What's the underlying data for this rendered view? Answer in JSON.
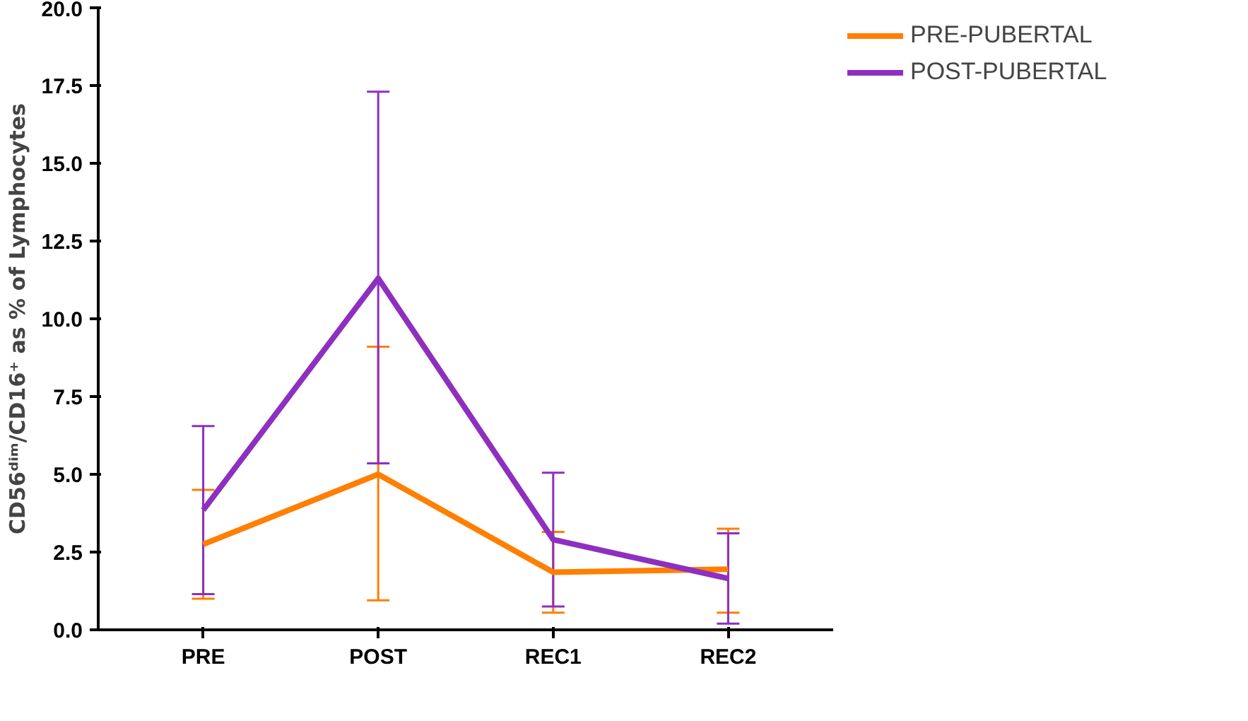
{
  "chart_data": {
    "type": "line",
    "ylabel": "CD56ᵈⁱᵐ/CD16⁺ as % of Lymphocytes",
    "categories": [
      "PRE",
      "POST",
      "REC1",
      "REC2"
    ],
    "series": [
      {
        "name": "PRE-PUBERTAL",
        "color": "#ff7f00",
        "values": [
          2.75,
          5.0,
          1.85,
          1.95
        ],
        "errors": [
          [
            1.0,
            4.5
          ],
          [
            0.95,
            9.1
          ],
          [
            0.55,
            3.15
          ],
          [
            0.55,
            3.25
          ]
        ]
      },
      {
        "name": "POST-PUBERTAL",
        "color": "#8e2fc0",
        "values": [
          3.85,
          11.3,
          2.9,
          1.65
        ],
        "errors": [
          [
            1.15,
            6.55
          ],
          [
            5.35,
            17.3
          ],
          [
            0.75,
            5.05
          ],
          [
            0.2,
            3.1
          ]
        ]
      }
    ],
    "ylim": [
      0,
      20
    ],
    "yticks": [
      {
        "value": 0,
        "label": "0.0"
      },
      {
        "value": 2.5,
        "label": "2.5"
      },
      {
        "value": 5,
        "label": "5.0"
      },
      {
        "value": 7.5,
        "label": "7.5"
      },
      {
        "value": 10,
        "label": "10.0"
      },
      {
        "value": 12.5,
        "label": "12.5"
      },
      {
        "value": 15,
        "label": "15.0"
      },
      {
        "value": 17.5,
        "label": "17.5"
      },
      {
        "value": 20,
        "label": "20.0"
      }
    ],
    "grid": false,
    "legend": "top right",
    "marker": "none",
    "line_style": "solid"
  }
}
